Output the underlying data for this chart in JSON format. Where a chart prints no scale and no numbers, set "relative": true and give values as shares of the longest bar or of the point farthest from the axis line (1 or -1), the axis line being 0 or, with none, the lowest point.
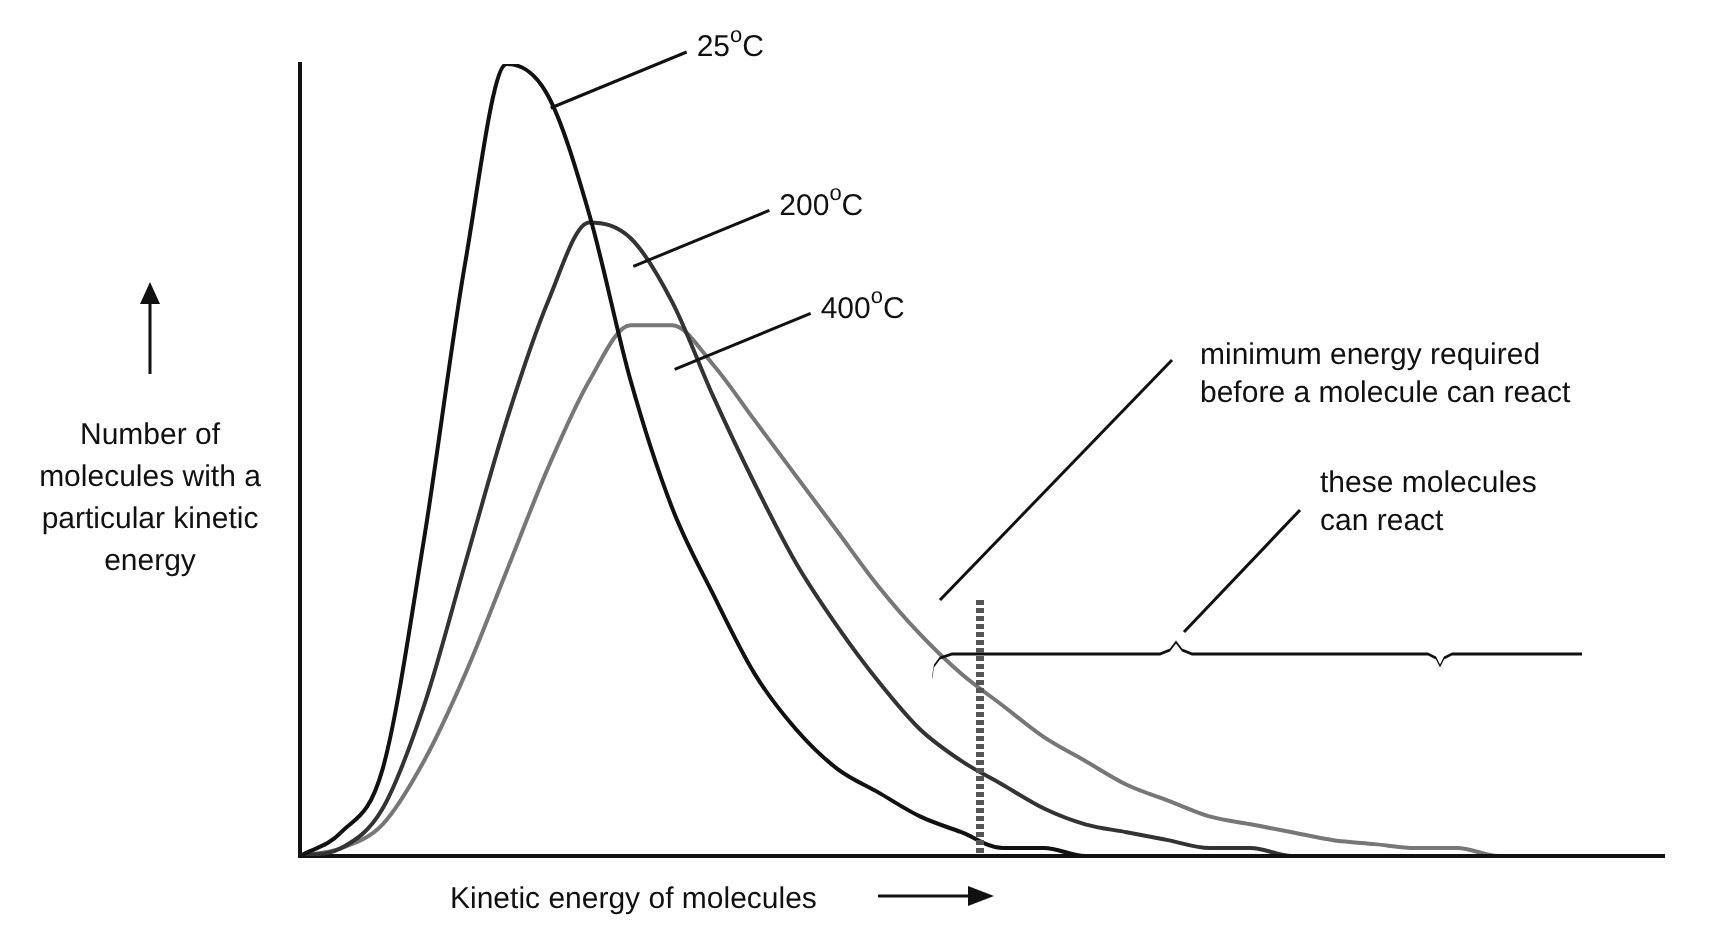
{
  "chart_data": {
    "type": "line",
    "relative": true,
    "xlabel": "Kinetic energy of molecules",
    "ylabel": "Number of molecules with a particular kinetic energy",
    "categories": [
      null,
      null,
      null,
      null,
      null,
      null,
      null,
      null,
      null,
      null,
      null,
      null,
      null,
      null,
      null,
      null,
      null,
      null,
      null,
      null,
      null,
      null,
      null,
      null,
      null,
      null,
      null,
      null,
      null,
      null,
      null,
      null,
      null,
      null
    ],
    "series": [
      {
        "name": "25$^{o}$C",
        "color": "#111111",
        "values": [
          0,
          0.03,
          0.11,
          0.4,
          0.75,
          1.0,
          0.96,
          0.81,
          0.6,
          0.44,
          0.33,
          0.23,
          0.16,
          0.11,
          0.08,
          0.05,
          0.03,
          0.01,
          0.01,
          0,
          0,
          0,
          0,
          0,
          0,
          0,
          0,
          0,
          0,
          0,
          0,
          0,
          0,
          0
        ]
      },
      {
        "name": "200$^{o}$C",
        "color": "#333333",
        "values": [
          0,
          0.01,
          0.06,
          0.19,
          0.37,
          0.55,
          0.7,
          0.8,
          0.78,
          0.7,
          0.58,
          0.47,
          0.37,
          0.29,
          0.22,
          0.16,
          0.12,
          0.09,
          0.06,
          0.04,
          0.03,
          0.02,
          0.01,
          0.01,
          0,
          0,
          0,
          0,
          0,
          0,
          0,
          0,
          0,
          0
        ]
      },
      {
        "name": "400$^{o}$C",
        "color": "#777777",
        "values": [
          0,
          0.01,
          0.04,
          0.12,
          0.23,
          0.36,
          0.49,
          0.6,
          0.67,
          0.67,
          0.62,
          0.55,
          0.48,
          0.41,
          0.34,
          0.28,
          0.23,
          0.19,
          0.15,
          0.12,
          0.09,
          0.07,
          0.05,
          0.04,
          0.03,
          0.02,
          0.015,
          0.01,
          0.01,
          0,
          0,
          0,
          0,
          0
        ]
      }
    ],
    "annotations": [
      "minimum energy required before a molecule can react",
      "these molecules can react"
    ],
    "grid": false,
    "legend": false,
    "marker": "none",
    "line_style": "solid"
  }
}
